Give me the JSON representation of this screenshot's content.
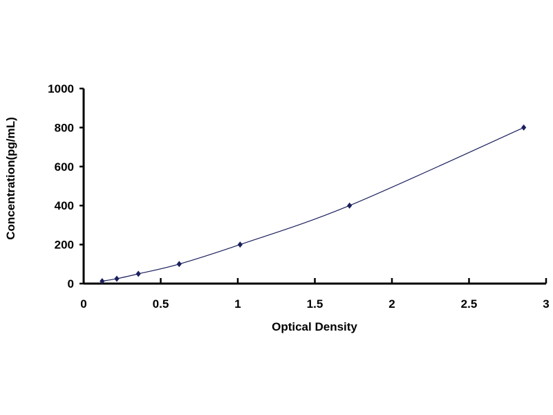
{
  "chart_data": {
    "type": "scatter",
    "title": "",
    "xlabel": "Optical Density",
    "ylabel": "Concentration(pg/mL)",
    "xlim": [
      0,
      3
    ],
    "ylim": [
      0,
      1000
    ],
    "x_ticks": [
      0,
      0.5,
      1,
      1.5,
      2,
      2.5,
      3
    ],
    "x_tick_labels": [
      "0",
      "0.5",
      "1",
      "1.5",
      "2",
      "2.5",
      "3"
    ],
    "y_ticks": [
      0,
      200,
      400,
      600,
      800,
      1000
    ],
    "y_tick_labels": [
      "0",
      "200",
      "400",
      "600",
      "800",
      "1000"
    ],
    "grid": false,
    "trendline": "smooth curve through points",
    "series": [
      {
        "x": [
          0.12,
          0.215,
          0.355,
          0.62,
          1.015,
          1.725,
          2.855
        ],
        "y": [
          12.5,
          25,
          50,
          100,
          200,
          400,
          800
        ],
        "marker": "diamond",
        "color": "#1a1f5c"
      }
    ]
  }
}
